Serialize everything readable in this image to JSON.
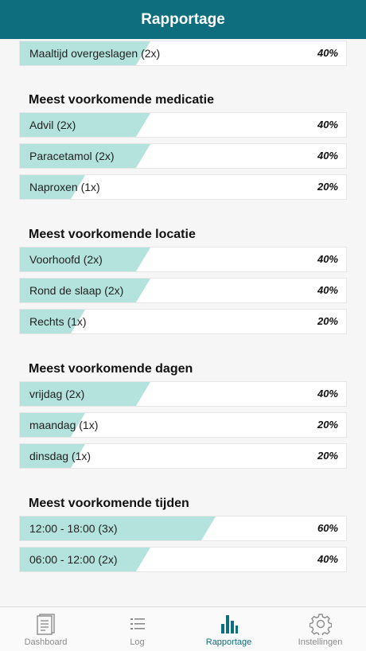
{
  "header": {
    "title": "Rapportage"
  },
  "sections": [
    {
      "title": "",
      "rows": [
        {
          "label": "Maaltijd overgeslagen (2x)",
          "percent": "40%",
          "fill": 0.4
        }
      ]
    },
    {
      "title": "Meest voorkomende medicatie",
      "rows": [
        {
          "label": "Advil (2x)",
          "percent": "40%",
          "fill": 0.4
        },
        {
          "label": "Paracetamol (2x)",
          "percent": "40%",
          "fill": 0.4
        },
        {
          "label": "Naproxen (1x)",
          "percent": "20%",
          "fill": 0.2
        }
      ]
    },
    {
      "title": "Meest voorkomende locatie",
      "rows": [
        {
          "label": "Voorhoofd (2x)",
          "percent": "40%",
          "fill": 0.4
        },
        {
          "label": "Rond de slaap (2x)",
          "percent": "40%",
          "fill": 0.4
        },
        {
          "label": "Rechts (1x)",
          "percent": "20%",
          "fill": 0.2
        }
      ]
    },
    {
      "title": "Meest voorkomende dagen",
      "rows": [
        {
          "label": "vrijdag (2x)",
          "percent": "40%",
          "fill": 0.4
        },
        {
          "label": "maandag (1x)",
          "percent": "20%",
          "fill": 0.2
        },
        {
          "label": "dinsdag (1x)",
          "percent": "20%",
          "fill": 0.2
        }
      ]
    },
    {
      "title": "Meest voorkomende tijden",
      "rows": [
        {
          "label": "12:00 - 18:00 (3x)",
          "percent": "60%",
          "fill": 0.6
        },
        {
          "label": "06:00 - 12:00 (2x)",
          "percent": "40%",
          "fill": 0.4
        }
      ]
    }
  ],
  "tabbar": {
    "items": [
      {
        "label": "Dashboard",
        "icon": "dashboard-icon"
      },
      {
        "label": "Log",
        "icon": "list-icon"
      },
      {
        "label": "Rapportage",
        "icon": "bar-chart-icon"
      },
      {
        "label": "Instellingen",
        "icon": "gear-icon"
      }
    ],
    "active_color": "#0e6e7e",
    "inactive_color": "#8a8a8a"
  },
  "colors": {
    "header": "#0e6e7e",
    "bar_fill": "#b3e3dc"
  }
}
